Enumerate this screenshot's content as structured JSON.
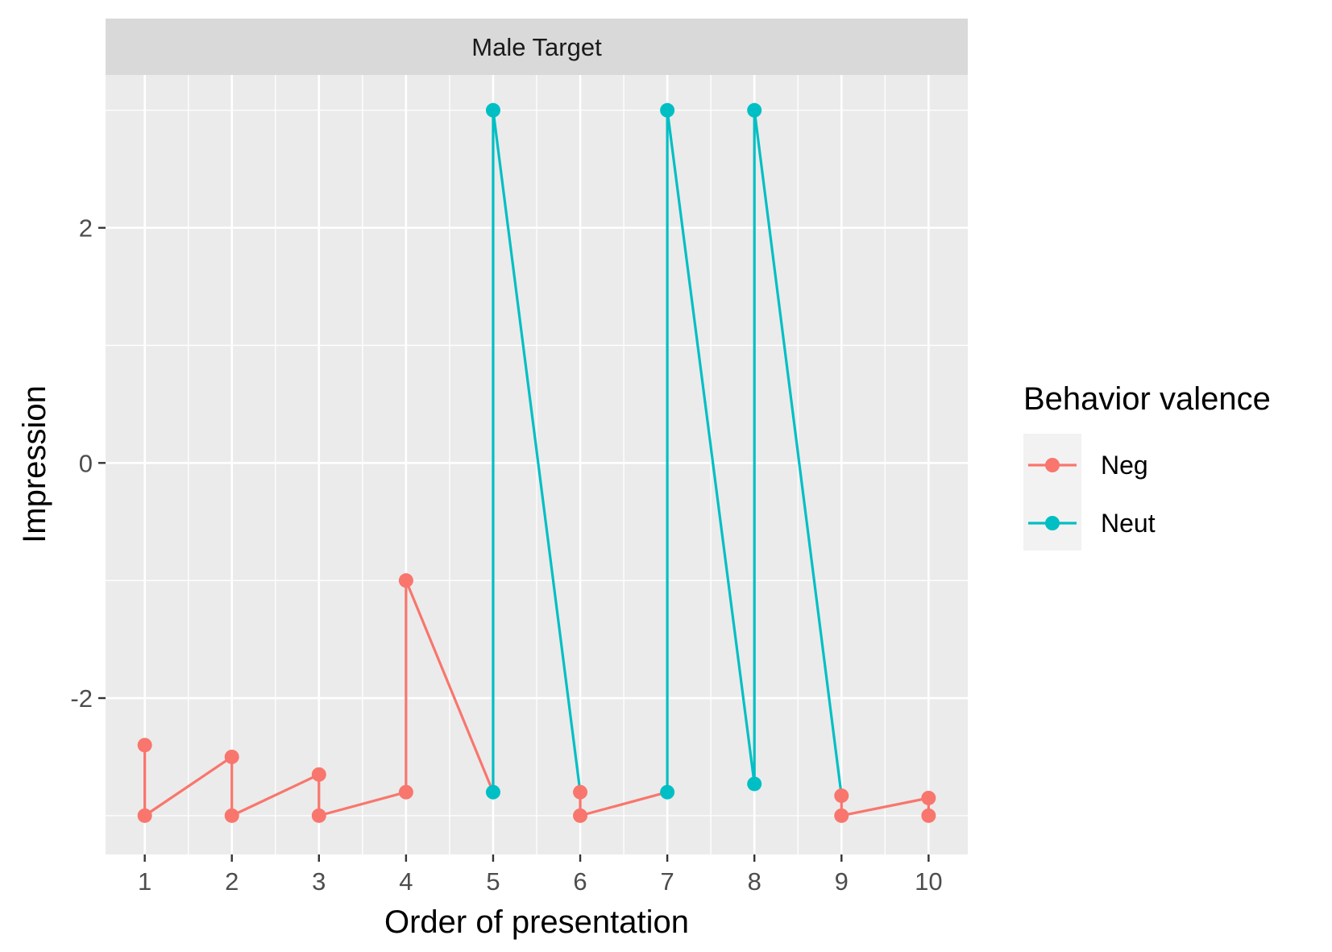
{
  "chart_data": {
    "type": "line",
    "facet_label": "Male Target",
    "title": "",
    "xlabel": "Order of presentation",
    "ylabel": "Impression",
    "xlim": [
      0.55,
      10.45
    ],
    "ylim": [
      -3.33,
      3.3
    ],
    "x_ticks": [
      1,
      2,
      3,
      4,
      5,
      6,
      7,
      8,
      9,
      10
    ],
    "y_ticks": [
      -2,
      0,
      2
    ],
    "grid": true,
    "legend": {
      "title": "Behavior valence",
      "placement": "right",
      "entries": [
        "Neg",
        "Neut"
      ]
    },
    "path": [
      {
        "x": 1,
        "y": -2.4,
        "series": "Neg"
      },
      {
        "x": 1,
        "y": -3.0,
        "series": "Neg"
      },
      {
        "x": 2,
        "y": -2.5,
        "series": "Neg"
      },
      {
        "x": 2,
        "y": -3.0,
        "series": "Neg"
      },
      {
        "x": 3,
        "y": -2.65,
        "series": "Neg"
      },
      {
        "x": 3,
        "y": -3.0,
        "series": "Neg"
      },
      {
        "x": 4,
        "y": -2.8,
        "series": "Neg"
      },
      {
        "x": 4,
        "y": -1.0,
        "series": "Neg"
      },
      {
        "x": 5,
        "y": -2.8,
        "series": "Neut"
      },
      {
        "x": 5,
        "y": 3.0,
        "series": "Neut"
      },
      {
        "x": 6,
        "y": -2.8,
        "series": "Neg"
      },
      {
        "x": 6,
        "y": -3.0,
        "series": "Neg"
      },
      {
        "x": 7,
        "y": -2.8,
        "series": "Neut"
      },
      {
        "x": 7,
        "y": 3.0,
        "series": "Neut"
      },
      {
        "x": 8,
        "y": -2.73,
        "series": "Neut"
      },
      {
        "x": 8,
        "y": 3.0,
        "series": "Neut"
      },
      {
        "x": 9,
        "y": -2.83,
        "series": "Neg"
      },
      {
        "x": 9,
        "y": -3.0,
        "series": "Neg"
      },
      {
        "x": 10,
        "y": -2.85,
        "series": "Neg"
      },
      {
        "x": 10,
        "y": -3.0,
        "series": "Neg"
      }
    ],
    "colors": {
      "Neg": "#F8766D",
      "Neut": "#00BFC4"
    }
  }
}
